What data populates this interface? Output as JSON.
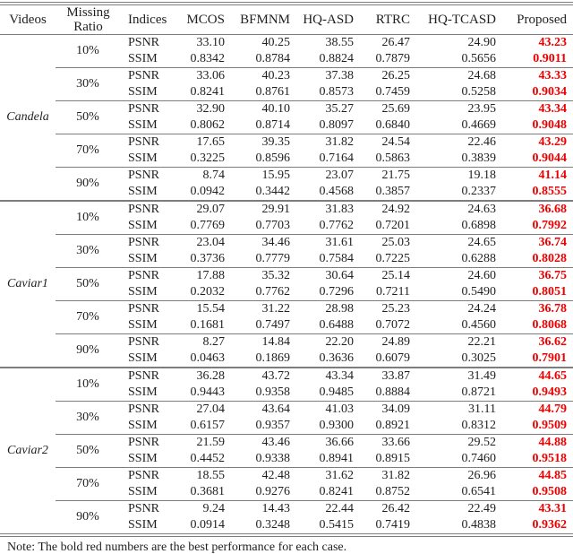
{
  "colors": {
    "best_value": "#ee0000",
    "text": "#1f1f1f",
    "rule": "#7d7d7d"
  },
  "table": {
    "header": {
      "videos": "Videos",
      "missing_ratio_line1": "Missing",
      "missing_ratio_line2": "Ratio",
      "indices": "Indices",
      "methods": [
        "MCOS",
        "BFMNM",
        "HQ-ASD",
        "RTRC",
        "HQ-TCASD",
        "Proposed"
      ]
    },
    "indices_labels": [
      "PSNR",
      "SSIM"
    ],
    "videos": [
      {
        "name": "Candela",
        "groups": [
          {
            "ratio": "10%",
            "psnr": [
              "33.10",
              "40.25",
              "38.55",
              "26.47",
              "24.90",
              "43.23"
            ],
            "ssim": [
              "0.8342",
              "0.8784",
              "0.8824",
              "0.7879",
              "0.5656",
              "0.9011"
            ]
          },
          {
            "ratio": "30%",
            "psnr": [
              "33.06",
              "40.23",
              "37.38",
              "26.25",
              "24.68",
              "43.33"
            ],
            "ssim": [
              "0.8241",
              "0.8761",
              "0.8573",
              "0.7459",
              "0.5258",
              "0.9034"
            ]
          },
          {
            "ratio": "50%",
            "psnr": [
              "32.90",
              "40.10",
              "35.27",
              "25.69",
              "23.95",
              "43.34"
            ],
            "ssim": [
              "0.8062",
              "0.8714",
              "0.8097",
              "0.6840",
              "0.4669",
              "0.9048"
            ]
          },
          {
            "ratio": "70%",
            "psnr": [
              "17.65",
              "39.35",
              "31.82",
              "24.54",
              "22.46",
              "43.29"
            ],
            "ssim": [
              "0.3225",
              "0.8596",
              "0.7164",
              "0.5863",
              "0.3839",
              "0.9044"
            ]
          },
          {
            "ratio": "90%",
            "psnr": [
              "8.74",
              "15.95",
              "23.07",
              "21.75",
              "19.18",
              "41.14"
            ],
            "ssim": [
              "0.0942",
              "0.3442",
              "0.4568",
              "0.3857",
              "0.2337",
              "0.8555"
            ]
          }
        ]
      },
      {
        "name": "Caviar1",
        "groups": [
          {
            "ratio": "10%",
            "psnr": [
              "29.07",
              "29.91",
              "31.83",
              "24.92",
              "24.63",
              "36.68"
            ],
            "ssim": [
              "0.7769",
              "0.7703",
              "0.7762",
              "0.7201",
              "0.6898",
              "0.7992"
            ]
          },
          {
            "ratio": "30%",
            "psnr": [
              "23.04",
              "34.46",
              "31.61",
              "25.03",
              "24.65",
              "36.74"
            ],
            "ssim": [
              "0.3736",
              "0.7779",
              "0.7584",
              "0.7225",
              "0.6288",
              "0.8028"
            ]
          },
          {
            "ratio": "50%",
            "psnr": [
              "17.88",
              "35.32",
              "30.64",
              "25.14",
              "24.60",
              "36.75"
            ],
            "ssim": [
              "0.2032",
              "0.7762",
              "0.7296",
              "0.7211",
              "0.5490",
              "0.8051"
            ]
          },
          {
            "ratio": "70%",
            "psnr": [
              "15.54",
              "31.22",
              "28.98",
              "25.23",
              "24.24",
              "36.78"
            ],
            "ssim": [
              "0.1681",
              "0.7497",
              "0.6488",
              "0.7072",
              "0.4560",
              "0.8068"
            ]
          },
          {
            "ratio": "90%",
            "psnr": [
              "8.27",
              "14.84",
              "22.20",
              "24.89",
              "22.21",
              "36.62"
            ],
            "ssim": [
              "0.0463",
              "0.1869",
              "0.3636",
              "0.6079",
              "0.3025",
              "0.7901"
            ]
          }
        ]
      },
      {
        "name": "Caviar2",
        "groups": [
          {
            "ratio": "10%",
            "psnr": [
              "36.28",
              "43.72",
              "43.34",
              "33.87",
              "31.49",
              "44.65"
            ],
            "ssim": [
              "0.9443",
              "0.9358",
              "0.9485",
              "0.8884",
              "0.8721",
              "0.9493"
            ]
          },
          {
            "ratio": "30%",
            "psnr": [
              "27.04",
              "43.64",
              "41.03",
              "34.09",
              "31.11",
              "44.79"
            ],
            "ssim": [
              "0.6157",
              "0.9357",
              "0.9300",
              "0.8921",
              "0.8312",
              "0.9509"
            ]
          },
          {
            "ratio": "50%",
            "psnr": [
              "21.59",
              "43.46",
              "36.66",
              "33.66",
              "29.52",
              "44.88"
            ],
            "ssim": [
              "0.4452",
              "0.9338",
              "0.8941",
              "0.8915",
              "0.7460",
              "0.9518"
            ]
          },
          {
            "ratio": "70%",
            "psnr": [
              "18.55",
              "42.48",
              "31.62",
              "31.82",
              "26.96",
              "44.85"
            ],
            "ssim": [
              "0.3681",
              "0.9276",
              "0.8241",
              "0.8752",
              "0.6541",
              "0.9508"
            ]
          },
          {
            "ratio": "90%",
            "psnr": [
              "9.24",
              "14.43",
              "22.44",
              "26.42",
              "22.49",
              "43.31"
            ],
            "ssim": [
              "0.0914",
              "0.3248",
              "0.5415",
              "0.7419",
              "0.4838",
              "0.9362"
            ]
          }
        ]
      }
    ],
    "note": "Note: The bold red numbers are the best performance for each case."
  }
}
